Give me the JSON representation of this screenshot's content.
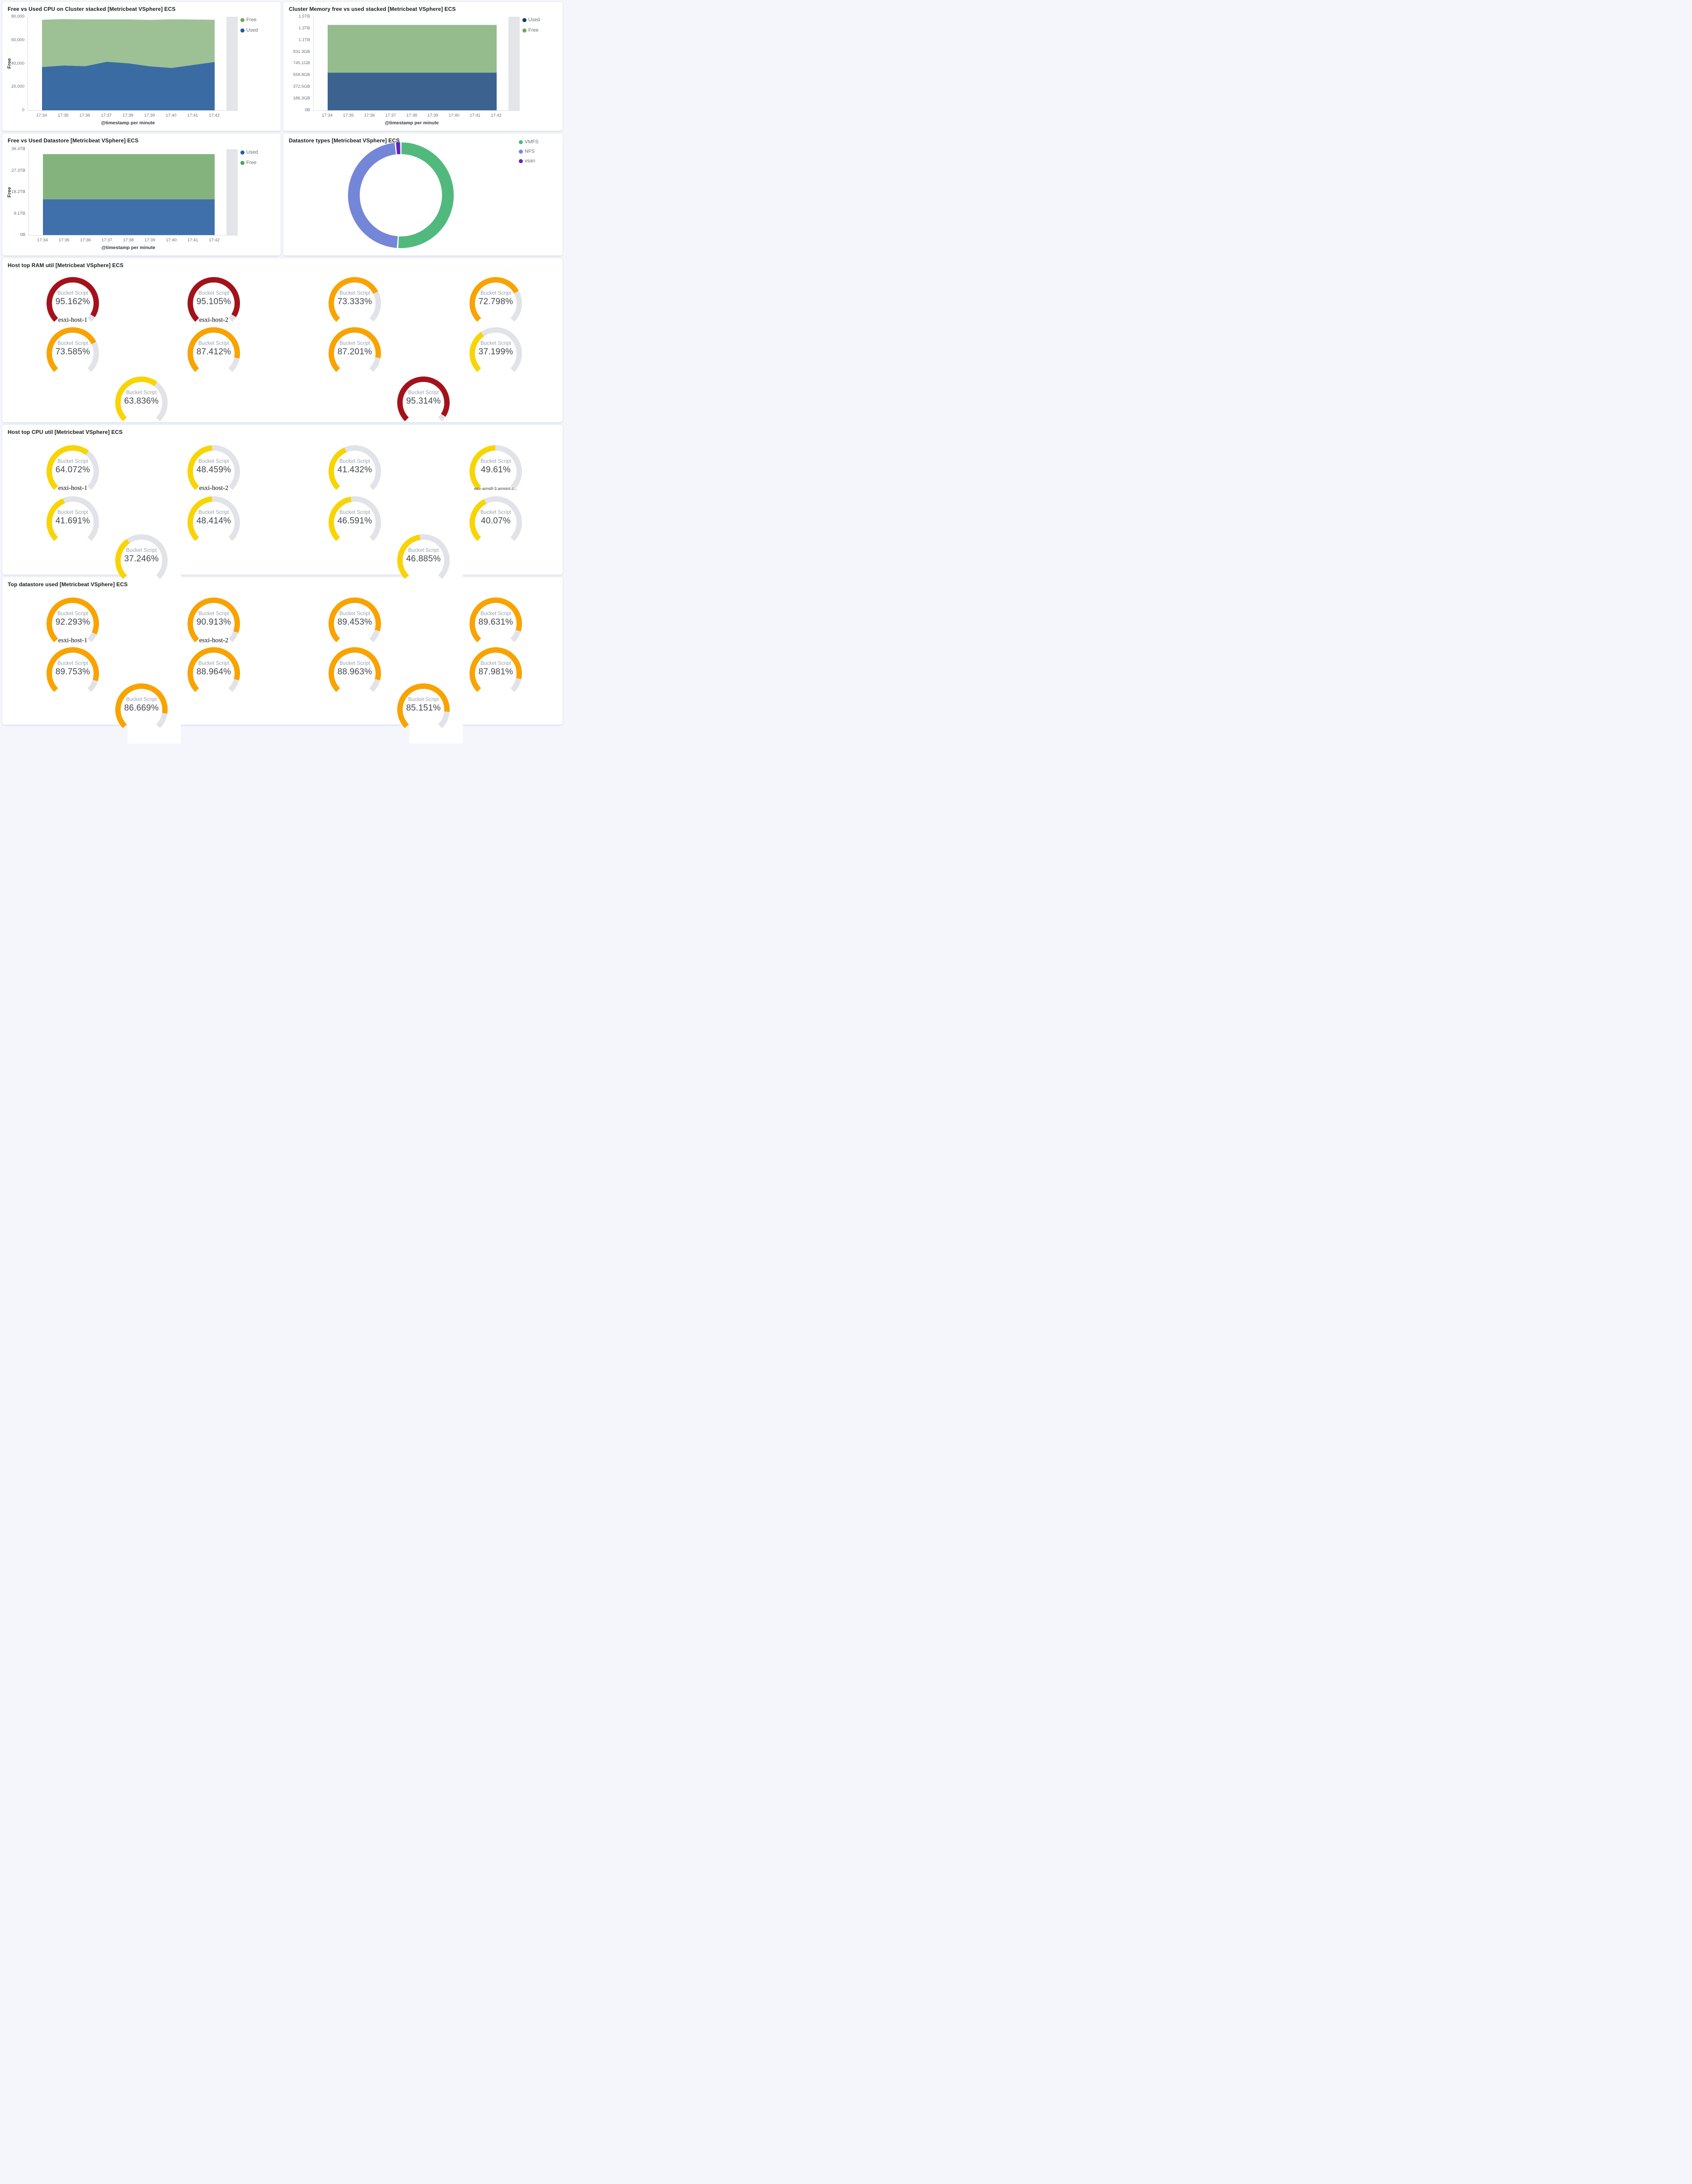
{
  "chart_data": [
    {
      "id": "cpu_cluster",
      "type": "area",
      "title": "Free vs Used CPU on Cluster stacked [Metricbeat VSphere] ECS",
      "xlabel": "@timestamp per minute",
      "ylabel": "Free",
      "stacked": true,
      "x": [
        "17:34",
        "17:35",
        "17:36",
        "17:37",
        "17:38",
        "17:39",
        "17:40",
        "17:41",
        "17:42"
      ],
      "series": [
        {
          "name": "Used",
          "fill": "#3a6ba3",
          "dot": "#185ba5",
          "values": [
            37000,
            38300,
            37700,
            41500,
            40200,
            37600,
            36200,
            38800,
            41300
          ]
        },
        {
          "name": "Free",
          "fill": "#9dc095",
          "dot": "#73a757",
          "values": [
            40400,
            39700,
            40000,
            36200,
            37500,
            39700,
            41600,
            38800,
            36100
          ]
        }
      ],
      "legend_order": [
        "Free",
        "Used"
      ],
      "ymax": 80000,
      "yticks": [
        {
          "v": 0,
          "label": "0"
        },
        {
          "v": 20000,
          "label": "20,000"
        },
        {
          "v": 40000,
          "label": "40,000"
        },
        {
          "v": 60000,
          "label": "60,000"
        },
        {
          "v": 80000,
          "label": "80,000"
        }
      ],
      "grid": false,
      "legend_position": "right"
    },
    {
      "id": "memory",
      "type": "area",
      "title": "Cluster Memory free vs used stacked [Metricbeat VSphere] ECS",
      "xlabel": "@timestamp per minute",
      "ylabel": "",
      "stacked": true,
      "x": [
        "17:34",
        "17:35",
        "17:36",
        "17:37",
        "17:38",
        "17:39",
        "17:40",
        "17:41",
        "17:42"
      ],
      "series": [
        {
          "name": "Used",
          "fill": "#3c6390",
          "dot": "#16396f",
          "values": [
            600,
            600,
            600,
            600,
            600,
            600,
            600,
            600,
            600
          ]
        },
        {
          "name": "Free",
          "fill": "#94bc8d",
          "dot": "#73a757",
          "values": [
            760,
            760,
            760,
            760,
            760,
            760,
            760,
            760,
            760
          ]
        }
      ],
      "legend_order": [
        "Used",
        "Free"
      ],
      "ymax": 1490.1,
      "yunits": "GB",
      "yticks": [
        {
          "v": 0,
          "label": "0B"
        },
        {
          "v": 186.3,
          "label": "186.3GB"
        },
        {
          "v": 372.5,
          "label": "372.5GB"
        },
        {
          "v": 558.8,
          "label": "558.8GB"
        },
        {
          "v": 745.1,
          "label": "745.1GB"
        },
        {
          "v": 931.3,
          "label": "931.3GB"
        },
        {
          "v": 1117.6,
          "label": "1.1TB"
        },
        {
          "v": 1303.9,
          "label": "1.3TB"
        },
        {
          "v": 1490.1,
          "label": "1.5TB"
        }
      ],
      "grid": false,
      "legend_position": "right"
    },
    {
      "id": "datastore_area",
      "type": "area",
      "title": "Free vs Used Datastore [Metricbeat VSphere] ECS",
      "xlabel": "@timestamp per minute",
      "ylabel": "Free",
      "stacked": true,
      "x": [
        "17:34",
        "17:35",
        "17:36",
        "17:37",
        "17:38",
        "17:39",
        "17:40",
        "17:41",
        "17:42"
      ],
      "series": [
        {
          "name": "Used",
          "fill": "#3f70ab",
          "dot": "#1d61ac",
          "values": [
            15.2,
            15.2,
            15.2,
            15.2,
            15.2,
            15.2,
            15.2,
            15.2,
            15.2
          ]
        },
        {
          "name": "Free",
          "fill": "#85b37e",
          "dot": "#4aa550",
          "values": [
            19.1,
            19.1,
            19.1,
            19.1,
            19.1,
            19.1,
            19.1,
            19.1,
            19.1
          ]
        }
      ],
      "legend_order": [
        "Used",
        "Free"
      ],
      "ymax": 36.4,
      "yunits": "TB",
      "yticks": [
        {
          "v": 0,
          "label": "0B"
        },
        {
          "v": 9.1,
          "label": "9.1TB"
        },
        {
          "v": 18.2,
          "label": "18.2TB"
        },
        {
          "v": 27.3,
          "label": "27.3TB"
        },
        {
          "v": 36.4,
          "label": "36.4TB"
        }
      ],
      "grid": false,
      "legend_position": "right"
    },
    {
      "id": "datastore_types",
      "type": "pie",
      "title": "Datastore types [Metricbeat VSphere] ECS",
      "donut": true,
      "slices": [
        {
          "label": "VMFS",
          "pct": 51.0,
          "color": "#51b97d"
        },
        {
          "label": "NFS",
          "pct": 47.3,
          "color": "#7486d8"
        },
        {
          "label": "vsan",
          "pct": 1.7,
          "color": "#6524bb"
        }
      ],
      "legend_position": "right"
    },
    {
      "id": "ram",
      "type": "gauge-grid",
      "title": "Host top RAM util [Metricbeat VSphere] ECS",
      "metric_label": "Bucket Script",
      "unit": "%",
      "rows": [
        [
          {
            "display": "95.162%",
            "pct": 95.162,
            "color": "#a3121b",
            "label": "esxi-host-1"
          },
          {
            "display": "95.105%",
            "pct": 95.105,
            "color": "#a3121b",
            "label": "esxi-host-2"
          },
          {
            "display": "73.333%",
            "pct": 73.333,
            "color": "#f8a300",
            "label": ""
          },
          {
            "display": "72.798%",
            "pct": 72.798,
            "color": "#f8a300",
            "label": ""
          }
        ],
        [
          {
            "display": "73.585%",
            "pct": 73.585,
            "color": "#f8a300",
            "label": ""
          },
          {
            "display": "87.412%",
            "pct": 87.412,
            "color": "#f8a300",
            "label": ""
          },
          {
            "display": "87.201%",
            "pct": 87.201,
            "color": "#f8a300",
            "label": ""
          },
          {
            "display": "37.199%",
            "pct": 37.199,
            "color": "#f8d402",
            "label": ""
          }
        ],
        [
          {
            "display": "63.836%",
            "pct": 63.836,
            "color": "#f8d402",
            "label": ""
          },
          {
            "display": "95.314%",
            "pct": 95.314,
            "color": "#a3121b",
            "label": ""
          }
        ]
      ],
      "track_color": "#e2e3e8"
    },
    {
      "id": "cpu",
      "type": "gauge-grid",
      "title": "Host top CPU util [Metricbeat VSphere] ECS",
      "metric_label": "Bucket Script",
      "unit": "%",
      "rows": [
        [
          {
            "display": "64.072%",
            "pct": 64.072,
            "color": "#f8d402",
            "label": "esxi-host-1"
          },
          {
            "display": "48.459%",
            "pct": 48.459,
            "color": "#f8d402",
            "label": "esxi-host-2"
          },
          {
            "display": "41.432%",
            "pct": 41.432,
            "color": "#f8d402",
            "label": ""
          },
          {
            "display": "49.61%",
            "pct": 49.61,
            "color": "#f8d402",
            "label": "esx-ams8-3.amsint.c..."
          }
        ],
        [
          {
            "display": "41.691%",
            "pct": 41.691,
            "color": "#f8d402",
            "label": ""
          },
          {
            "display": "48.414%",
            "pct": 48.414,
            "color": "#f8d402",
            "label": ""
          },
          {
            "display": "46.591%",
            "pct": 46.591,
            "color": "#f8d402",
            "label": ""
          },
          {
            "display": "40.07%",
            "pct": 40.07,
            "color": "#f8d402",
            "label": ""
          }
        ],
        [
          {
            "display": "37.246%",
            "pct": 37.246,
            "color": "#f8d402",
            "label": ""
          },
          {
            "display": "46.885%",
            "pct": 46.885,
            "color": "#f8d402",
            "label": ""
          }
        ]
      ],
      "track_color": "#e2e3e8"
    },
    {
      "id": "ds",
      "type": "gauge-grid",
      "title": "Top datastore used [Metricbeat VSphere] ECS",
      "metric_label": "Bucket Script",
      "unit": "%",
      "rows": [
        [
          {
            "display": "92.293%",
            "pct": 92.293,
            "color": "#f8a300",
            "label": "esxi-host-1"
          },
          {
            "display": "90.913%",
            "pct": 90.913,
            "color": "#f8a300",
            "label": "esxi-host-2"
          },
          {
            "display": "89.453%",
            "pct": 89.453,
            "color": "#f8a300",
            "label": ""
          },
          {
            "display": "89.631%",
            "pct": 89.631,
            "color": "#f8a300",
            "label": ""
          }
        ],
        [
          {
            "display": "89.753%",
            "pct": 89.753,
            "color": "#f8a300",
            "label": ""
          },
          {
            "display": "88.964%",
            "pct": 88.964,
            "color": "#f8a300",
            "label": ""
          },
          {
            "display": "88.963%",
            "pct": 88.963,
            "color": "#f8a300",
            "label": ""
          },
          {
            "display": "87.981%",
            "pct": 87.981,
            "color": "#f8a300",
            "label": ""
          }
        ],
        [
          {
            "display": "86.669%",
            "pct": 86.669,
            "color": "#f8a300",
            "label": ""
          },
          {
            "display": "85.151%",
            "pct": 85.151,
            "color": "#f8a300",
            "label": ""
          }
        ]
      ],
      "track_color": "#e2e3e8"
    }
  ],
  "colors": {
    "page_background": "#f4f6fb",
    "panel_background": "#ffffff",
    "gauge_red": "#a3121b",
    "gauge_orange": "#f8a300",
    "gauge_yellow": "#f8d402",
    "gauge_track": "#e2e3e8",
    "partial_bucket_mask": "#e4e5e9"
  }
}
